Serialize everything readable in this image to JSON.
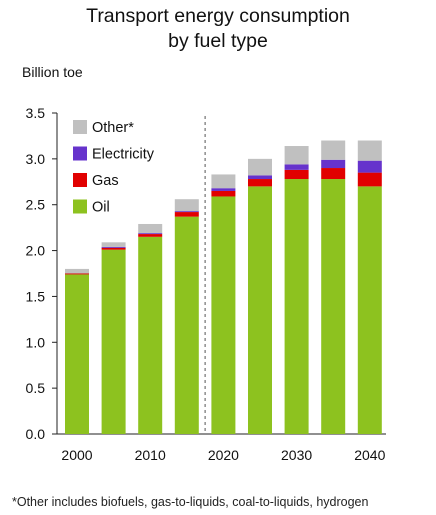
{
  "title_line1": "Transport energy consumption",
  "title_line2": "by fuel type",
  "footnote": "*Other includes biofuels, gas-to-liquids, coal-to-liquids, hydrogen",
  "chart_data": {
    "type": "bar",
    "stacked": true,
    "ylabel": "Billion toe",
    "ylim": [
      0,
      3.5
    ],
    "yticks": [
      "0.0",
      "0.5",
      "1.0",
      "1.5",
      "2.0",
      "2.5",
      "3.0",
      "3.5"
    ],
    "x": [
      2000,
      2005,
      2010,
      2015,
      2020,
      2025,
      2030,
      2035,
      2040
    ],
    "xtick_labels": [
      "2000",
      "2010",
      "2020",
      "2030",
      "2040"
    ],
    "projection_divider_after": 2015,
    "series": [
      {
        "name": "Oil",
        "color": "#8dc21f",
        "values": [
          1.74,
          2.01,
          2.15,
          2.37,
          2.59,
          2.7,
          2.78,
          2.78,
          2.7
        ]
      },
      {
        "name": "Gas",
        "color": "#e10000",
        "values": [
          0.01,
          0.02,
          0.03,
          0.05,
          0.06,
          0.08,
          0.1,
          0.12,
          0.15
        ]
      },
      {
        "name": "Electricity",
        "color": "#6633cc",
        "values": [
          0.0,
          0.01,
          0.01,
          0.01,
          0.03,
          0.04,
          0.06,
          0.09,
          0.13
        ]
      },
      {
        "name": "Other*",
        "color": "#c0c0c0",
        "values": [
          0.05,
          0.05,
          0.1,
          0.13,
          0.15,
          0.18,
          0.2,
          0.21,
          0.22
        ]
      }
    ],
    "legend_order": [
      "Other*",
      "Electricity",
      "Gas",
      "Oil"
    ],
    "legend_position": "top-left",
    "grid": false
  }
}
